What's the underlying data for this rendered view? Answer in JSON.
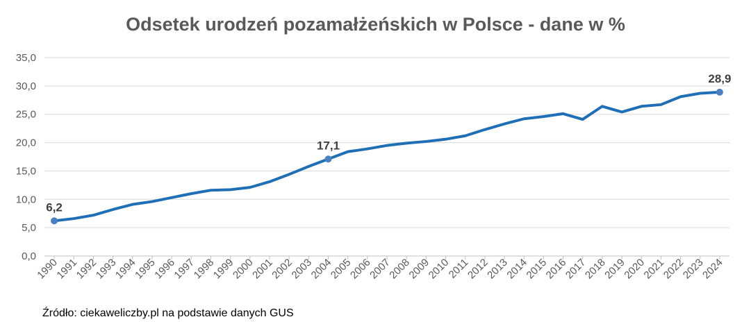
{
  "title": "Odsetek urodzeń pozamałżeńskich w Polsce - dane w %",
  "source": "Źródło: ciekaweliczby.pl na podstawie danych GUS",
  "colors": {
    "line": "#1F6FB6",
    "marker": "#4A7FC1",
    "grid": "#D9D9D9",
    "axis": "#BFBFBF",
    "text": "#595959"
  },
  "chart_data": {
    "type": "line",
    "title": "Odsetek urodzeń pozamałżeńskich w Polsce - dane w %",
    "xlabel": "",
    "ylabel": "",
    "ylim": [
      0,
      35
    ],
    "yticks": [
      "0,0",
      "5,0",
      "10,0",
      "15,0",
      "20,0",
      "25,0",
      "30,0",
      "35,0"
    ],
    "grid": true,
    "legend": "none",
    "categories": [
      "1990",
      "1991",
      "1992",
      "1993",
      "1994",
      "1995",
      "1996",
      "1997",
      "1998",
      "1999",
      "2000",
      "2001",
      "2002",
      "2003",
      "2004",
      "2005",
      "2006",
      "2007",
      "2008",
      "2009",
      "2010",
      "2011",
      "2012",
      "2013",
      "2014",
      "2015",
      "2016",
      "2017",
      "2018",
      "2019",
      "2020",
      "2021",
      "2022",
      "2023",
      "2024"
    ],
    "series": [
      {
        "values": [
          6.2,
          6.6,
          7.2,
          8.2,
          9.1,
          9.6,
          10.3,
          11.0,
          11.6,
          11.7,
          12.1,
          13.1,
          14.4,
          15.8,
          17.1,
          18.4,
          18.9,
          19.5,
          19.9,
          20.2,
          20.6,
          21.2,
          22.3,
          23.3,
          24.2,
          24.6,
          25.1,
          24.1,
          26.4,
          25.4,
          26.4,
          26.7,
          28.1,
          28.7,
          28.9
        ]
      }
    ],
    "data_labels": [
      {
        "category": "1990",
        "text": "6,2"
      },
      {
        "category": "2004",
        "text": "17,1"
      },
      {
        "category": "2024",
        "text": "28,9"
      }
    ]
  }
}
